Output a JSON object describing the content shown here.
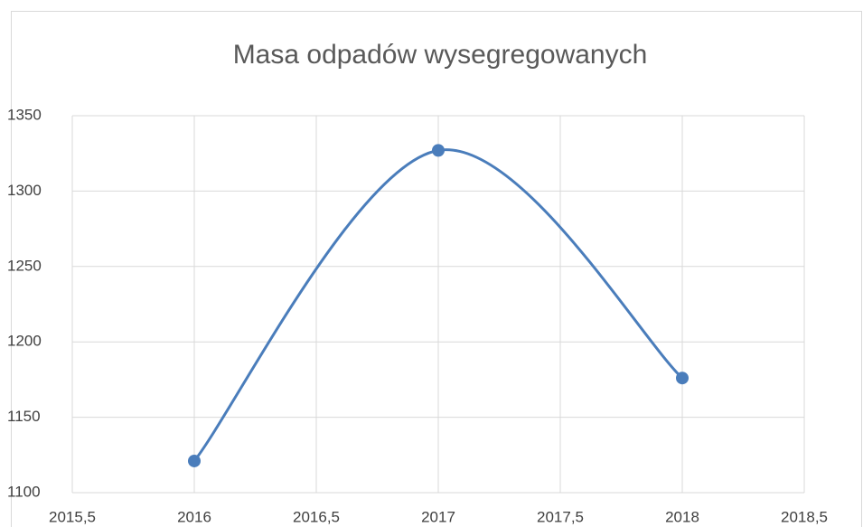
{
  "chart_data": {
    "type": "scatter",
    "title": "Masa odpadów wysegregowanych",
    "series": [
      {
        "color": "#4a7dbb",
        "x": [
          2016,
          2017,
          2018
        ],
        "values": [
          1121,
          1327,
          1176
        ]
      }
    ],
    "smooth": true,
    "xlim": [
      2015.5,
      2018.5
    ],
    "xticks": [
      {
        "value": 2015.5,
        "label": "2015,5"
      },
      2016,
      {
        "value": 2016.5,
        "label": "2016,5"
      },
      2017,
      {
        "value": 2017.5,
        "label": "2017,5"
      },
      2018,
      {
        "value": 2018.5,
        "label": "2018,5"
      }
    ],
    "ylim": [
      1100,
      1350
    ],
    "yticks": [
      1100,
      1150,
      1200,
      1250,
      1300,
      1350
    ],
    "grid": true
  }
}
